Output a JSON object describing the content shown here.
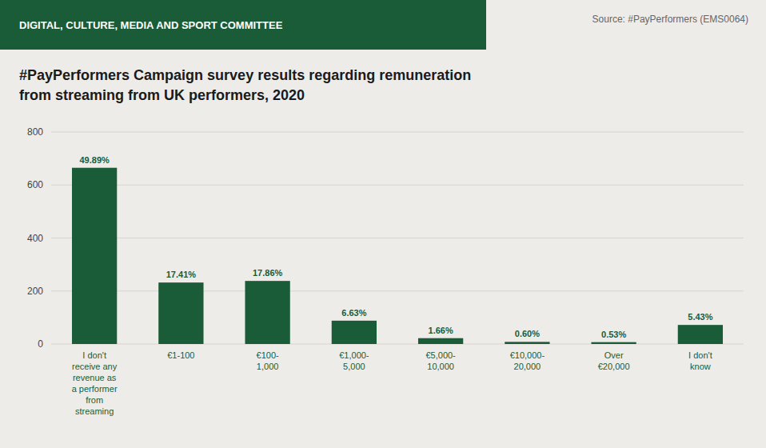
{
  "chart_data": {
    "type": "bar",
    "title": "#PayPerformers Campaign survey results regarding remuneration",
    "subtitle": "from streaming from UK performers, 2020",
    "annotations": [
      "DIGITAL, CULTURE, MEDIA AND SPORT COMMITTEE",
      "Source: #PayPerformers (EMS0064)"
    ],
    "categories": [
      "I don't\nreceive any\nrevenue as\na performer\nfrom\nstreaming",
      "€1-100",
      "€100-\n1,000",
      "€1,000-\n5,000",
      "€5,000-\n10,000",
      "€10,000-\n20,000",
      "Over\n€20,000",
      "I don't\nknow"
    ],
    "values": [
      665,
      232,
      238,
      88,
      22,
      8,
      7,
      72
    ],
    "percentages": [
      "49.89%",
      "17.41%",
      "17.86%",
      "6.63%",
      "1.66%",
      "0.60%",
      "0.53%",
      "5.43%"
    ],
    "color": "#1a5c38",
    "ylim": [
      0,
      800
    ],
    "yticks": [
      0,
      200,
      400,
      600,
      800
    ],
    "grid": true
  }
}
